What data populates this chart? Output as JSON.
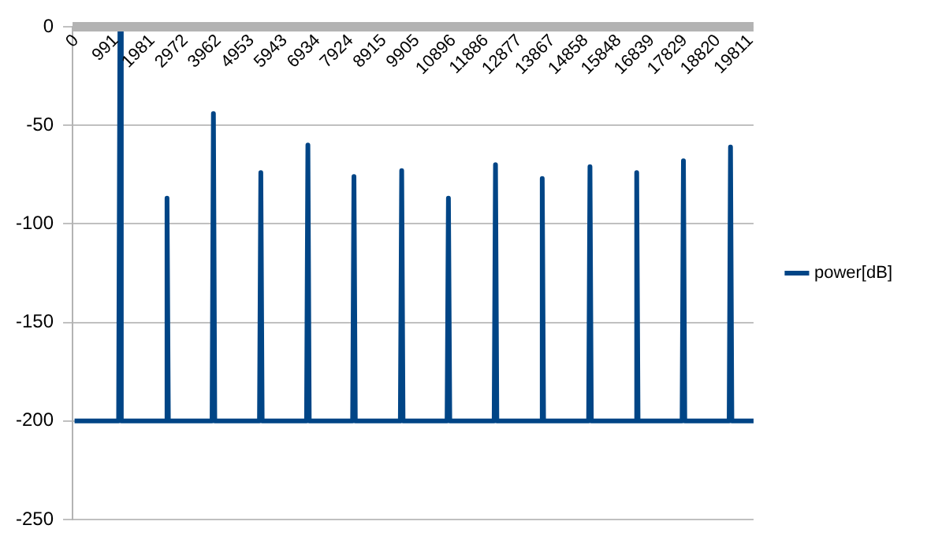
{
  "chart_data": {
    "type": "line",
    "x": [
      60,
      1380,
      1420,
      1460,
      2790,
      2830,
      2870,
      4180,
      4220,
      4260,
      5600,
      5640,
      5680,
      7010,
      7050,
      7090,
      8390,
      8430,
      8470,
      9820,
      9860,
      9900,
      11220,
      11260,
      11300,
      12630,
      12670,
      12710,
      14030,
      14070,
      14110,
      15460,
      15500,
      15540,
      16860,
      16900,
      16940,
      18260,
      18300,
      18340,
      19670,
      19710,
      19750,
      20400
    ],
    "series": [
      {
        "name": "power[dB]",
        "color": "#004586",
        "values": [
          -200,
          -200,
          0,
          -200,
          -200,
          -87,
          -200,
          -200,
          -44,
          -200,
          -200,
          -74,
          -200,
          -200,
          -60,
          -200,
          -200,
          -76,
          -200,
          -200,
          -73,
          -200,
          -200,
          -87,
          -200,
          -200,
          -70,
          -200,
          -200,
          -77,
          -200,
          -200,
          -71,
          -200,
          -200,
          -74,
          -200,
          -200,
          -68,
          -200,
          -200,
          -61,
          -200,
          -200
        ]
      }
    ],
    "xlim": [
      0,
      20400
    ],
    "xticks": [
      0,
      991,
      1981,
      2972,
      3962,
      4953,
      5943,
      6934,
      7924,
      8915,
      9905,
      10896,
      11886,
      12877,
      13867,
      14858,
      15848,
      16839,
      17829,
      18820,
      19811
    ],
    "ylim": [
      -250,
      0
    ],
    "yticks": [
      -250,
      -200,
      -150,
      -100,
      -50,
      0
    ],
    "grid": "y",
    "legend": "right",
    "marker": "none",
    "line_style": "solid"
  }
}
